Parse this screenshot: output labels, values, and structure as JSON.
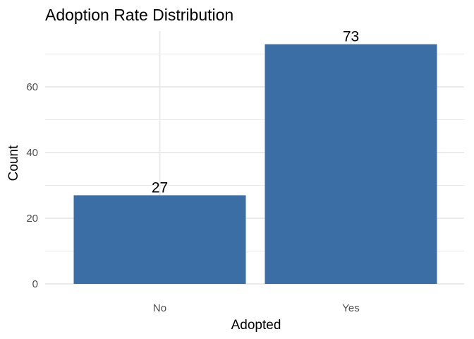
{
  "chart_data": {
    "type": "bar",
    "title": "Adoption Rate Distribution",
    "xlabel": "Adopted",
    "ylabel": "Count",
    "categories": [
      "No",
      "Yes"
    ],
    "values": [
      27,
      73
    ],
    "data_labels": [
      "27",
      "73"
    ],
    "ylim": [
      0,
      77
    ],
    "y_ticks": [
      0,
      20,
      40,
      60
    ],
    "y_minor_ticks": [
      10,
      30,
      50,
      70
    ],
    "grid": true,
    "bar_color": "#3a6ea5",
    "grid_color": "#ebebeb",
    "legend": "none"
  }
}
